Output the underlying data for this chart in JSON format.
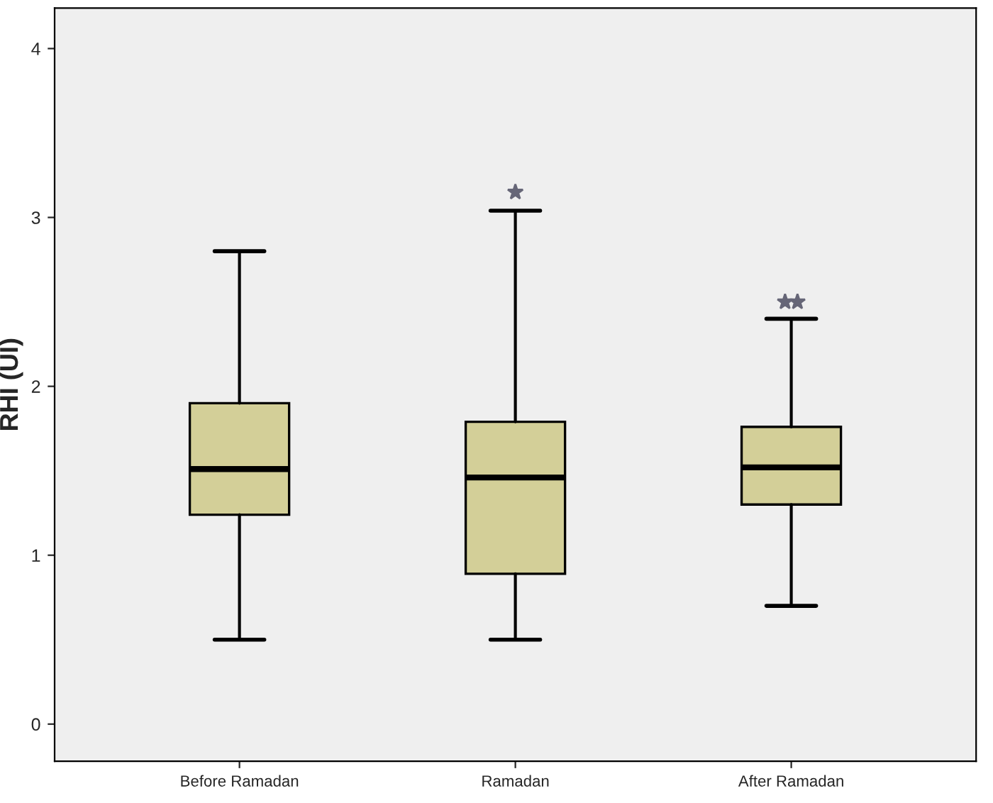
{
  "chart_data": {
    "type": "box",
    "ylabel": "RHI (UI)",
    "categories": [
      "Before Ramadan",
      "Ramadan",
      "After Ramadan"
    ],
    "series": [
      {
        "color": "#d3cf98",
        "boxes": [
          {
            "low": 0.5,
            "q1": 1.24,
            "median": 1.51,
            "q3": 1.9,
            "high": 2.8
          },
          {
            "low": 0.5,
            "q1": 0.89,
            "median": 1.46,
            "q3": 1.79,
            "high": 3.04,
            "outliers": [
              3.15
            ]
          },
          {
            "low": 0.7,
            "q1": 1.3,
            "median": 1.52,
            "q3": 1.76,
            "high": 2.4,
            "outliers": [
              2.5,
              2.5
            ]
          }
        ]
      }
    ],
    "marker": "star",
    "ylim": [
      -0.22,
      4.24
    ],
    "yticks": [
      0,
      1,
      2,
      3,
      4
    ],
    "grid": false,
    "legend": false
  }
}
